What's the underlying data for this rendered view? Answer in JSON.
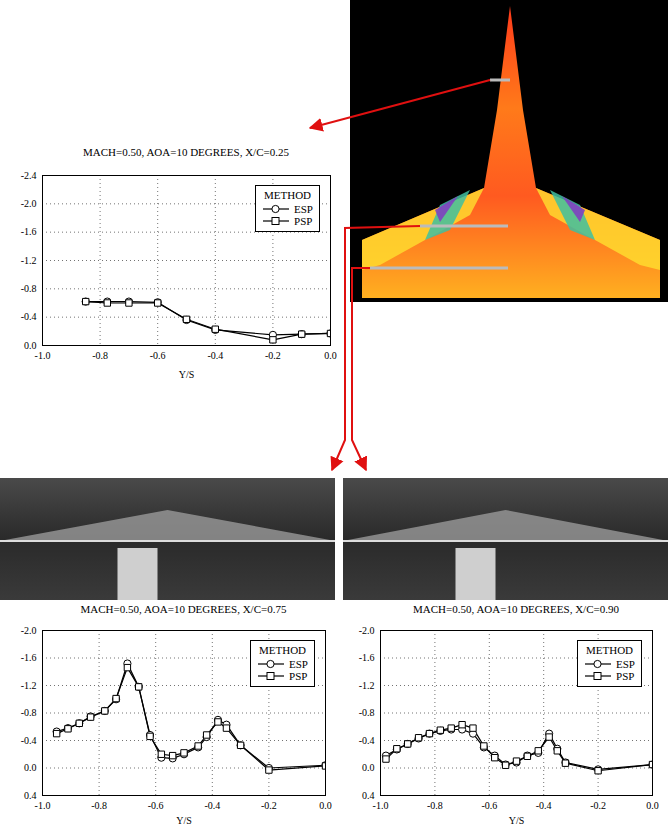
{
  "chart_data": [
    {
      "type": "line",
      "title": "MACH=0.50, AOA=10 DEGREES, X/C=0.25",
      "x_label": "Y/S",
      "legend_title": "METHOD",
      "legend": "top-right",
      "grid": true,
      "x": [
        -0.85,
        -0.775,
        -0.7,
        -0.6,
        -0.5,
        -0.4,
        -0.2,
        -0.1,
        0.0
      ],
      "series": [
        {
          "name": "ESP",
          "color": "#000000",
          "marker": "circle",
          "line_style": "solid",
          "values": [
            -0.62,
            -0.62,
            -0.62,
            -0.61,
            -0.36,
            -0.22,
            -0.15,
            -0.16,
            -0.17
          ]
        },
        {
          "name": "PSP",
          "color": "#000000",
          "marker": "square",
          "line_style": "solid",
          "values": [
            -0.62,
            -0.6,
            -0.6,
            -0.6,
            -0.37,
            -0.23,
            -0.08,
            -0.16,
            -0.17
          ]
        }
      ],
      "xlim": [
        -1.0,
        0.0
      ],
      "xticks": [
        {
          "value": -1.0,
          "label": "-1.0"
        },
        -0.8,
        -0.6,
        -0.4,
        -0.2,
        {
          "value": 0.0,
          "label": "0.0"
        }
      ],
      "ylim": [
        0.0,
        -2.4
      ],
      "yticks": [
        -2.4,
        {
          "value": -2.0,
          "label": "-2.0"
        },
        -1.6,
        -1.2,
        -0.8,
        -0.4,
        {
          "value": 0.0,
          "label": "0.0"
        }
      ]
    },
    {
      "type": "line",
      "title": "MACH=0.50, AOA=10 DEGREES, X/C=0.75",
      "x_label": "Y/S",
      "legend_title": "METHOD",
      "legend": "top-right",
      "grid": true,
      "x": [
        -0.95,
        -0.91,
        -0.87,
        -0.83,
        -0.78,
        -0.74,
        -0.7,
        -0.66,
        -0.62,
        -0.58,
        -0.54,
        -0.5,
        -0.45,
        -0.42,
        -0.38,
        -0.35,
        -0.3,
        -0.2,
        0.0
      ],
      "series": [
        {
          "name": "ESP",
          "color": "#000000",
          "marker": "circle",
          "line_style": "solid",
          "values": [
            -0.53,
            -0.58,
            -0.65,
            -0.75,
            -0.83,
            -1.0,
            -1.52,
            -1.18,
            -0.48,
            -0.15,
            -0.14,
            -0.2,
            -0.3,
            -0.45,
            -0.7,
            -0.63,
            -0.33,
            0.0,
            -0.04
          ]
        },
        {
          "name": "PSP",
          "color": "#000000",
          "marker": "square",
          "line_style": "solid",
          "values": [
            -0.5,
            -0.57,
            -0.65,
            -0.74,
            -0.83,
            -1.01,
            -1.46,
            -1.18,
            -0.46,
            -0.2,
            -0.18,
            -0.22,
            -0.32,
            -0.48,
            -0.67,
            -0.58,
            -0.33,
            0.03,
            -0.03
          ]
        }
      ],
      "xlim": [
        -1.0,
        0.0
      ],
      "xticks": [
        {
          "value": -1.0,
          "label": "-1.0"
        },
        -0.8,
        -0.6,
        -0.4,
        -0.2,
        {
          "value": 0.0,
          "label": "0.0"
        }
      ],
      "ylim": [
        0.4,
        -2.0
      ],
      "yticks": [
        {
          "value": -2.0,
          "label": "-2.0"
        },
        -1.6,
        -1.2,
        -0.8,
        -0.4,
        {
          "value": 0.0,
          "label": "0.0"
        },
        0.4
      ]
    },
    {
      "type": "line",
      "title": "MACH=0.50, AOA=10 DEGREES, X/C=0.90",
      "x_label": "Y/S",
      "legend_title": "METHOD",
      "legend": "top-right",
      "grid": true,
      "x": [
        -0.98,
        -0.94,
        -0.9,
        -0.86,
        -0.82,
        -0.78,
        -0.74,
        -0.7,
        -0.66,
        -0.62,
        -0.58,
        -0.54,
        -0.5,
        -0.46,
        -0.42,
        -0.38,
        -0.35,
        -0.32,
        -0.2,
        0.0
      ],
      "series": [
        {
          "name": "ESP",
          "color": "#000000",
          "marker": "circle",
          "line_style": "solid",
          "values": [
            -0.18,
            -0.27,
            -0.35,
            -0.43,
            -0.5,
            -0.54,
            -0.56,
            -0.56,
            -0.5,
            -0.3,
            -0.18,
            -0.05,
            -0.08,
            -0.18,
            -0.22,
            -0.5,
            -0.28,
            -0.08,
            0.02,
            -0.05
          ]
        },
        {
          "name": "PSP",
          "color": "#000000",
          "marker": "square",
          "line_style": "solid",
          "values": [
            -0.13,
            -0.28,
            -0.35,
            -0.44,
            -0.5,
            -0.55,
            -0.58,
            -0.63,
            -0.58,
            -0.32,
            -0.15,
            -0.04,
            -0.1,
            -0.17,
            -0.25,
            -0.45,
            -0.25,
            -0.07,
            0.04,
            -0.05
          ]
        }
      ],
      "xlim": [
        -1.0,
        0.0
      ],
      "xticks": [
        {
          "value": -1.0,
          "label": "-1.0"
        },
        -0.8,
        -0.6,
        -0.4,
        -0.2,
        {
          "value": 0.0,
          "label": "0.0"
        }
      ],
      "ylim": [
        0.4,
        -2.0
      ],
      "yticks": [
        {
          "value": -2.0,
          "label": "-2.0"
        },
        -1.6,
        -1.2,
        -0.8,
        -0.4,
        {
          "value": 0.0,
          "label": "0.0"
        },
        0.4
      ]
    }
  ]
}
